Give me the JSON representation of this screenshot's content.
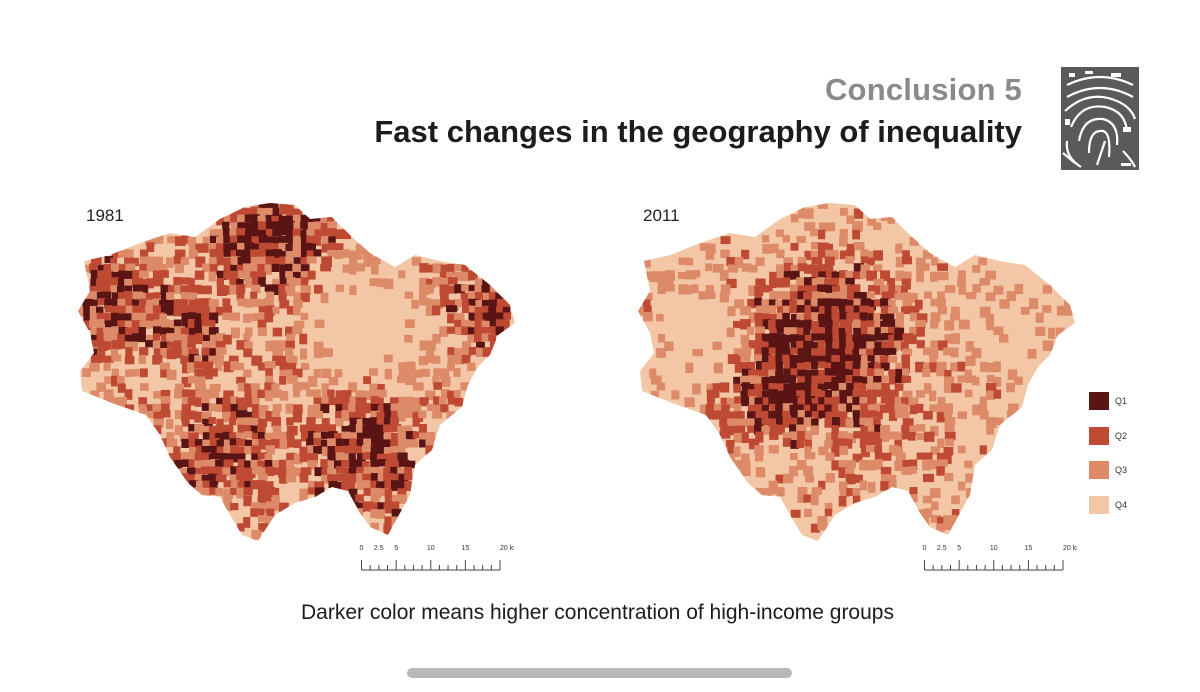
{
  "header": {
    "kicker": "Conclusion 5",
    "title": "Fast changes in the geography of inequality"
  },
  "maps": [
    {
      "year": "1981",
      "region": "London",
      "dominant_quartiles": [
        "Q1",
        "Q2",
        "Q4"
      ],
      "pattern": "high-income groups spread across outer north-west, north-east and south"
    },
    {
      "year": "2011",
      "region": "London",
      "dominant_quartiles": [
        "Q1",
        "Q3",
        "Q4"
      ],
      "pattern": "high-income groups concentrated in central and inner-west London"
    }
  ],
  "legend": [
    {
      "label": "Q1",
      "color": "#5a1414"
    },
    {
      "label": "Q2",
      "color": "#bf4a34"
    },
    {
      "label": "Q3",
      "color": "#dc8a67"
    },
    {
      "label": "Q4",
      "color": "#f3c7a6"
    }
  ],
  "scale": {
    "ticks": [
      "0",
      "2.5",
      "5",
      "10",
      "15",
      "20 km"
    ]
  },
  "caption": "Darker color means higher concentration of high-income groups",
  "icons": {
    "logo": "fingerprint-map-logo"
  }
}
